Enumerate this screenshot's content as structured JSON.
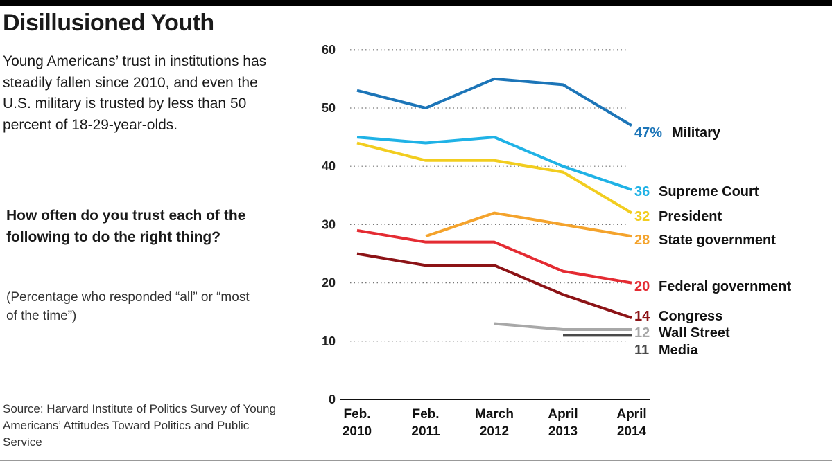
{
  "header": {
    "title": "Disillusioned Youth",
    "subtitle": "Young Americans’ trust in institutions has steadily fallen since 2010, and even the U.S. military is trusted by less than 50 percent of 18-29-year-olds.",
    "question": "How often do you trust each of the following to do the right thing?",
    "note": "(Percentage who responded “all” or “most of the time”)"
  },
  "footer": {
    "source": "Source: Harvard Institute of Politics Survey of Young Americans’ Attitudes Toward Politics and Public Service"
  },
  "chart_data": {
    "type": "line",
    "x": [
      [
        "Feb.",
        "2010"
      ],
      [
        "Feb.",
        "2011"
      ],
      [
        "March",
        "2012"
      ],
      [
        "April",
        "2013"
      ],
      [
        "April",
        "2014"
      ]
    ],
    "ylim": [
      0,
      60
    ],
    "yticks": [
      "0",
      "10",
      "20",
      "30",
      "40",
      "50",
      "60"
    ],
    "grid": "horizontal-dotted",
    "legend": "end-of-line labels",
    "series": [
      {
        "name": "Military",
        "value_label": "47%",
        "color": "#1c75b8",
        "values": [
          53,
          50,
          55,
          54,
          47
        ]
      },
      {
        "name": "Supreme Court",
        "value_label": "36",
        "color": "#1fb2e6",
        "values": [
          45,
          44,
          45,
          40,
          36
        ]
      },
      {
        "name": "President",
        "value_label": "32",
        "color": "#f2cd1f",
        "values": [
          44,
          41,
          41,
          39,
          32
        ]
      },
      {
        "name": "State government",
        "value_label": "28",
        "color": "#f4a32c",
        "values": [
          null,
          28,
          32,
          30,
          28
        ]
      },
      {
        "name": "Federal government",
        "value_label": "20",
        "color": "#e42b32",
        "values": [
          29,
          27,
          27,
          22,
          20
        ]
      },
      {
        "name": "Congress",
        "value_label": "14",
        "color": "#8c1316",
        "values": [
          25,
          23,
          23,
          18,
          14
        ]
      },
      {
        "name": "Wall Street",
        "value_label": "12",
        "color": "#a8a8a8",
        "values": [
          null,
          null,
          13,
          12,
          12
        ]
      },
      {
        "name": "Media",
        "value_label": "11",
        "color": "#4a4a4a",
        "values": [
          null,
          null,
          null,
          11,
          11
        ]
      }
    ]
  }
}
